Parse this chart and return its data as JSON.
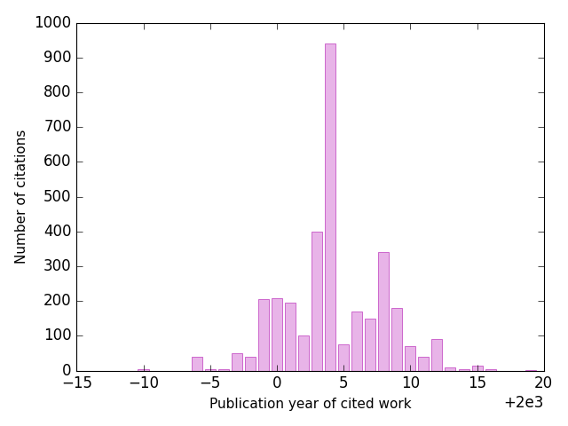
{
  "years": [
    1986,
    1987,
    1988,
    1989,
    1990,
    1991,
    1992,
    1993,
    1994,
    1995,
    1996,
    1997,
    1998,
    1999,
    2000,
    2001,
    2002,
    2003,
    2004,
    2005,
    2006,
    2007,
    2008,
    2009,
    2010,
    2011,
    2012,
    2013,
    2014,
    2015,
    2016,
    2017,
    2018,
    2019
  ],
  "values": [
    0,
    0,
    0,
    0,
    3,
    0,
    0,
    0,
    40,
    5,
    5,
    50,
    40,
    205,
    207,
    195,
    100,
    400,
    940,
    75,
    170,
    150,
    340,
    180,
    70,
    40,
    90,
    10,
    5,
    15,
    3,
    0,
    0,
    2
  ],
  "bar_color": "#e8b4e8",
  "bar_edgecolor": "#cc66cc",
  "xlabel": "Publication year of cited work",
  "ylabel": "Number of citations",
  "xlim": [
    1985,
    2020
  ],
  "ylim": [
    0,
    1000
  ],
  "yticks": [
    0,
    100,
    200,
    300,
    400,
    500,
    600,
    700,
    800,
    900,
    1000
  ],
  "xticks": [
    1985,
    1990,
    1995,
    2000,
    2005,
    2010,
    2015,
    2020
  ],
  "bar_width": 0.8,
  "figsize": [
    6.4,
    4.8
  ],
  "dpi": 100
}
